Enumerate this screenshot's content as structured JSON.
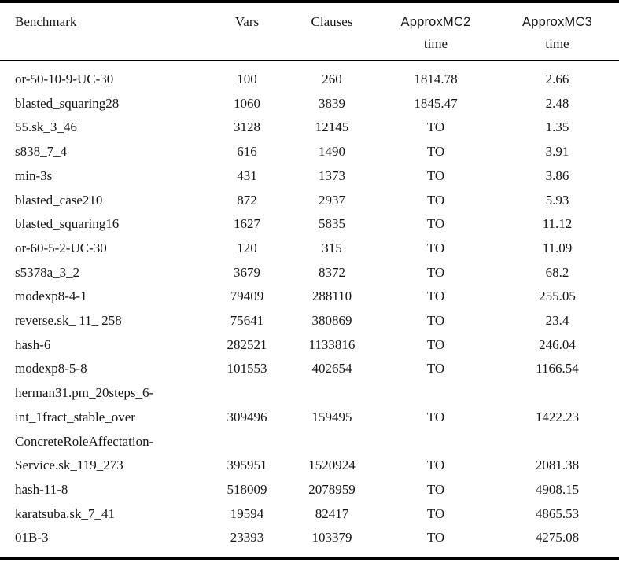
{
  "table": {
    "headers": {
      "benchmark": "Benchmark",
      "vars": "Vars",
      "clauses": "Clauses",
      "mc2_name": "ApproxMC2",
      "mc2_sub": "time",
      "mc3_name": "ApproxMC3",
      "mc3_sub": "time"
    },
    "rows": [
      {
        "name": [
          "or-50-10-9-UC-30"
        ],
        "vars": "100",
        "clauses": "260",
        "mc2": "1814.78",
        "mc3": "2.66"
      },
      {
        "name": [
          "blasted_squaring28"
        ],
        "vars": "1060",
        "clauses": "3839",
        "mc2": "1845.47",
        "mc3": "2.48"
      },
      {
        "name": [
          "55.sk_3_46"
        ],
        "vars": "3128",
        "clauses": "12145",
        "mc2": "TO",
        "mc3": "1.35"
      },
      {
        "name": [
          "s838_7_4"
        ],
        "vars": "616",
        "clauses": "1490",
        "mc2": "TO",
        "mc3": "3.91"
      },
      {
        "name": [
          "min-3s"
        ],
        "vars": "431",
        "clauses": "1373",
        "mc2": "TO",
        "mc3": "3.86"
      },
      {
        "name": [
          "blasted_case210"
        ],
        "vars": "872",
        "clauses": "2937",
        "mc2": "TO",
        "mc3": "5.93"
      },
      {
        "name": [
          "blasted_squaring16"
        ],
        "vars": "1627",
        "clauses": "5835",
        "mc2": "TO",
        "mc3": "11.12"
      },
      {
        "name": [
          "or-60-5-2-UC-30"
        ],
        "vars": "120",
        "clauses": "315",
        "mc2": "TO",
        "mc3": "11.09"
      },
      {
        "name": [
          "s5378a_3_2"
        ],
        "vars": "3679",
        "clauses": "8372",
        "mc2": "TO",
        "mc3": "68.2"
      },
      {
        "name": [
          "modexp8-4-1"
        ],
        "vars": "79409",
        "clauses": "288110",
        "mc2": "TO",
        "mc3": "255.05"
      },
      {
        "name": [
          "reverse.sk_ 11_ 258"
        ],
        "vars": "75641",
        "clauses": "380869",
        "mc2": "TO",
        "mc3": "23.4"
      },
      {
        "name": [
          "hash-6"
        ],
        "vars": "282521",
        "clauses": "1133816",
        "mc2": "TO",
        "mc3": "246.04"
      },
      {
        "name": [
          "modexp8-5-8"
        ],
        "vars": "101553",
        "clauses": "402654",
        "mc2": "TO",
        "mc3": "1166.54"
      },
      {
        "name": [
          "herman31.pm_20steps_6-",
          "int_1fract_stable_over"
        ],
        "vars": "309496",
        "clauses": "159495",
        "mc2": "TO",
        "mc3": "1422.23"
      },
      {
        "name": [
          "ConcreteRoleAffectation-",
          "Service.sk_119_273"
        ],
        "vars": "395951",
        "clauses": "1520924",
        "mc2": "TO",
        "mc3": "2081.38"
      },
      {
        "name": [
          "hash-11-8"
        ],
        "vars": "518009",
        "clauses": "2078959",
        "mc2": "TO",
        "mc3": "4908.15"
      },
      {
        "name": [
          "karatsuba.sk_7_41"
        ],
        "vars": "19594",
        "clauses": "82417",
        "mc2": "TO",
        "mc3": "4865.53"
      },
      {
        "name": [
          "01B-3"
        ],
        "vars": "23393",
        "clauses": "103379",
        "mc2": "TO",
        "mc3": "4275.08"
      }
    ]
  },
  "colors": {
    "text": "#161616",
    "rule": "#000000",
    "background": "#ffffff"
  }
}
